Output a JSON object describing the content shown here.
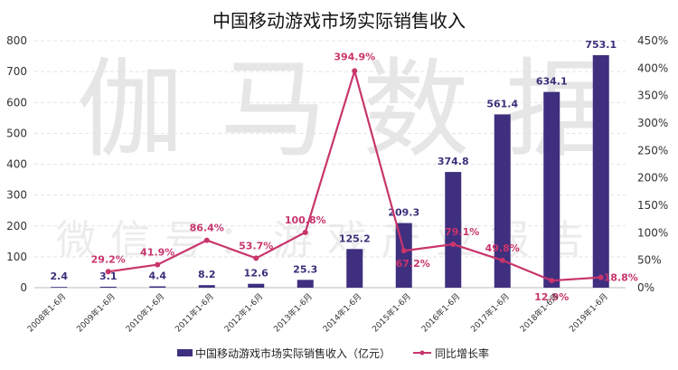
{
  "watermark": {
    "main": "伽马数据",
    "sub": "微信号：游戏产业报告"
  },
  "chart_data": {
    "type": "bar+line",
    "title": "中国移动游戏市场实际销售收入",
    "categories": [
      "2008年1-6月",
      "2009年1-6月",
      "2010年1-6月",
      "2011年1-6月",
      "2012年1-6月",
      "2013年1-6月",
      "2014年1-6月",
      "2015年1-6月",
      "2016年1-6月",
      "2017年1-6月",
      "2018年1-6月",
      "2019年1-6月"
    ],
    "series": [
      {
        "name": "中国移动游戏市场实际销售收入（亿元）",
        "type": "bar",
        "axis": "left",
        "color": "#3f2f7f",
        "values": [
          2.4,
          3.1,
          4.4,
          8.2,
          12.6,
          25.3,
          125.2,
          209.3,
          374.8,
          561.4,
          634.1,
          753.1
        ],
        "labels": [
          "2.4",
          "3.1",
          "4.4",
          "8.2",
          "12.6",
          "25.3",
          "125.2",
          "209.3",
          "374.8",
          "561.4",
          "634.1",
          "753.1"
        ]
      },
      {
        "name": "同比增长率",
        "type": "line",
        "axis": "right",
        "color": "#c8356c",
        "values": [
          null,
          29.2,
          41.9,
          86.4,
          53.7,
          100.8,
          394.9,
          67.2,
          79.1,
          49.8,
          12.9,
          18.8
        ],
        "labels": [
          null,
          "29.2%",
          "41.9%",
          "86.4%",
          "53.7%",
          "100.8%",
          "394.9%",
          "67.2%",
          "79.1%",
          "49.8%",
          "12.9%",
          "18.8%"
        ]
      }
    ],
    "ylim": [
      0,
      800
    ],
    "yticks": [
      "0",
      "100",
      "200",
      "300",
      "400",
      "500",
      "600",
      "700",
      "800"
    ],
    "y2lim": [
      0,
      450
    ],
    "y2ticks": [
      "0%",
      "50%",
      "100%",
      "150%",
      "200%",
      "250%",
      "300%",
      "350%",
      "400%",
      "450%"
    ],
    "grid": true,
    "legend": "bottom"
  }
}
